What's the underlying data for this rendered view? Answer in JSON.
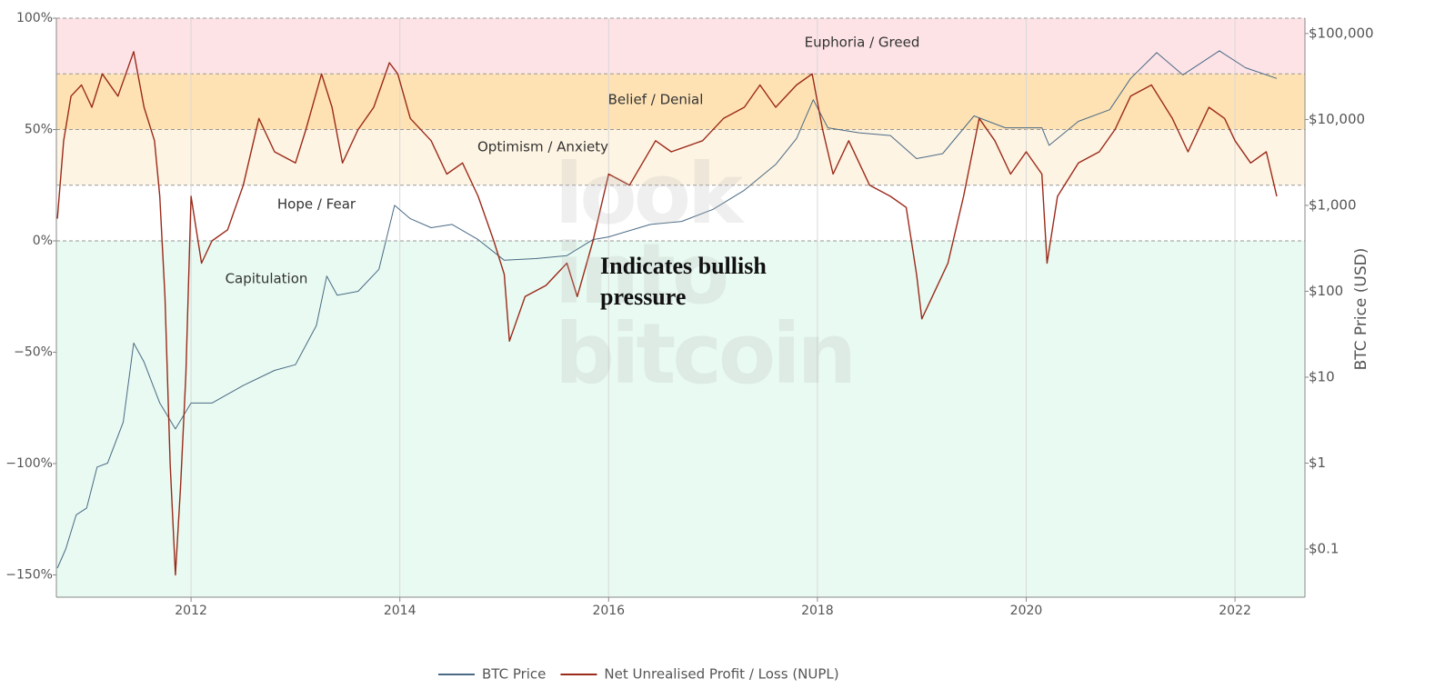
{
  "chart_data": {
    "type": "line",
    "annotation": "Indicates bullish pressure",
    "watermark": "look into bitcoin",
    "y2_label": "BTC Price (USD)",
    "xlim": [
      2010.71,
      2022.67
    ],
    "xticks": [
      2012,
      2014,
      2016,
      2018,
      2020,
      2022
    ],
    "ylim": [
      -160,
      100
    ],
    "yticks": [
      {
        "value": 100,
        "label": "100%"
      },
      {
        "value": 50,
        "label": "50%"
      },
      {
        "value": 0,
        "label": "0%"
      },
      {
        "value": -50,
        "label": "−50%"
      },
      {
        "value": -100,
        "label": "−100%"
      },
      {
        "value": -150,
        "label": "−150%"
      }
    ],
    "y2lim": [
      0.0275,
      151000
    ],
    "y2log": true,
    "y2ticks": [
      {
        "value": 100000,
        "label": "$100,000"
      },
      {
        "value": 10000,
        "label": "$10,000"
      },
      {
        "value": 1000,
        "label": "$1,000"
      },
      {
        "value": 100,
        "label": "$100"
      },
      {
        "value": 10,
        "label": "$10"
      },
      {
        "value": 1,
        "label": "$1"
      },
      {
        "value": 0.1,
        "label": "$0.1"
      }
    ],
    "grid": true,
    "zones": [
      {
        "name": "Euphoria / Greed",
        "range": [
          75,
          100
        ],
        "color": "#fde3e6"
      },
      {
        "name": "Belief / Denial",
        "range": [
          50,
          75
        ],
        "color": "#fee2b4"
      },
      {
        "name": "Optimism / Anxiety",
        "range": [
          25,
          50
        ],
        "color": "#fef4e3"
      },
      {
        "name": "Hope / Fear",
        "range": [
          0,
          25
        ],
        "color": "#ffffff"
      },
      {
        "name": "Capitulation",
        "range": [
          -160,
          0
        ],
        "color": "#e8faf1"
      }
    ],
    "series": [
      {
        "name": "BTC Price",
        "color": "#4a6a85",
        "axis": "y2",
        "x": [
          2010.72,
          2010.8,
          2010.9,
          2011.0,
          2011.1,
          2011.2,
          2011.35,
          2011.45,
          2011.55,
          2011.7,
          2011.85,
          2012.0,
          2012.2,
          2012.5,
          2012.8,
          2013.0,
          2013.2,
          2013.3,
          2013.4,
          2013.6,
          2013.8,
          2013.95,
          2014.1,
          2014.3,
          2014.5,
          2014.75,
          2015.0,
          2015.3,
          2015.6,
          2015.85,
          2016.0,
          2016.4,
          2016.7,
          2017.0,
          2017.3,
          2017.6,
          2017.8,
          2017.96,
          2018.1,
          2018.4,
          2018.7,
          2018.95,
          2019.2,
          2019.5,
          2019.8,
          2020.15,
          2020.22,
          2020.5,
          2020.8,
          2021.0,
          2021.25,
          2021.5,
          2021.85,
          2022.1,
          2022.4
        ],
        "values": [
          0.06,
          0.1,
          0.25,
          0.3,
          0.9,
          1,
          3,
          25,
          15,
          5,
          2.5,
          5,
          5,
          8,
          12,
          14,
          40,
          150,
          90,
          100,
          180,
          1000,
          700,
          550,
          600,
          400,
          230,
          240,
          260,
          400,
          430,
          600,
          650,
          900,
          1500,
          3000,
          6000,
          17000,
          8000,
          7000,
          6500,
          3500,
          4000,
          11000,
          8000,
          8000,
          5000,
          9500,
          13000,
          30000,
          60000,
          33000,
          63000,
          40000,
          30000
        ]
      },
      {
        "name": "Net Unrealised Profit / Loss (NUPL)",
        "color": "#9b2a1a",
        "x": [
          2010.72,
          2010.78,
          2010.85,
          2010.95,
          2011.05,
          2011.15,
          2011.3,
          2011.45,
          2011.55,
          2011.65,
          2011.7,
          2011.75,
          2011.8,
          2011.85,
          2011.9,
          2011.95,
          2012.0,
          2012.1,
          2012.2,
          2012.35,
          2012.5,
          2012.65,
          2012.8,
          2013.0,
          2013.1,
          2013.25,
          2013.35,
          2013.45,
          2013.6,
          2013.75,
          2013.9,
          2013.98,
          2014.1,
          2014.3,
          2014.45,
          2014.6,
          2014.75,
          2014.9,
          2015.0,
          2015.05,
          2015.2,
          2015.4,
          2015.6,
          2015.7,
          2015.85,
          2016.0,
          2016.2,
          2016.45,
          2016.6,
          2016.9,
          2017.1,
          2017.3,
          2017.45,
          2017.6,
          2017.8,
          2017.95,
          2018.05,
          2018.15,
          2018.3,
          2018.5,
          2018.7,
          2018.85,
          2018.95,
          2019.0,
          2019.1,
          2019.25,
          2019.4,
          2019.55,
          2019.7,
          2019.85,
          2020.0,
          2020.15,
          2020.2,
          2020.3,
          2020.5,
          2020.7,
          2020.85,
          2021.0,
          2021.2,
          2021.4,
          2021.55,
          2021.75,
          2021.9,
          2022.0,
          2022.15,
          2022.3,
          2022.4
        ],
        "values": [
          10,
          45,
          65,
          70,
          60,
          75,
          65,
          85,
          60,
          45,
          20,
          -25,
          -100,
          -150,
          -110,
          -60,
          20,
          -10,
          0,
          5,
          25,
          55,
          40,
          35,
          50,
          75,
          60,
          35,
          50,
          60,
          80,
          75,
          55,
          45,
          30,
          35,
          20,
          0,
          -15,
          -45,
          -25,
          -20,
          -10,
          -25,
          0,
          30,
          25,
          45,
          40,
          45,
          55,
          60,
          70,
          60,
          70,
          75,
          50,
          30,
          45,
          25,
          20,
          15,
          -15,
          -35,
          -25,
          -10,
          20,
          55,
          45,
          30,
          40,
          30,
          -10,
          20,
          35,
          40,
          50,
          65,
          70,
          55,
          40,
          60,
          55,
          45,
          35,
          40,
          20
        ]
      }
    ]
  }
}
